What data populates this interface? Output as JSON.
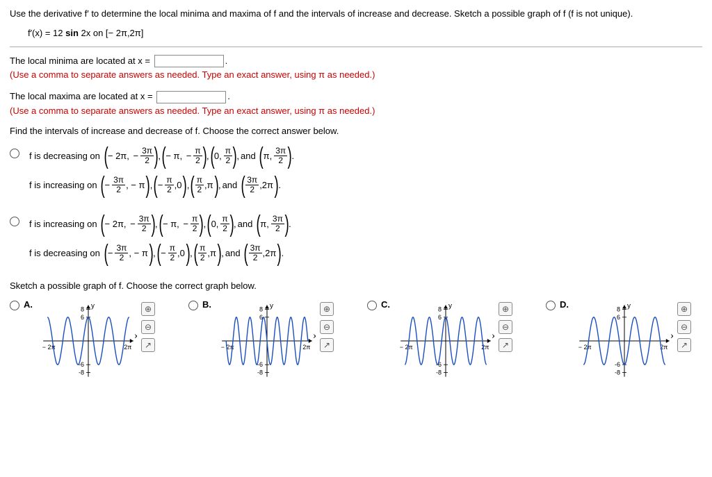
{
  "prompt": "Use the derivative f′ to determine the local minima and maxima of f and the intervals of increase and decrease. Sketch a possible graph of f (f is not unique).",
  "equation_prefix": "f′(x) = 12 ",
  "equation_bold": "sin",
  "equation_suffix": " 2x on [− 2π,2π]",
  "minima_label": "The local minima are located at x =",
  "maxima_label": "The local maxima are located at x =",
  "hint_text": "(Use a comma to separate answers as needed. Type an exact answer, using π as needed.)",
  "intervals_question": "Find the intervals of increase and decrease of f. Choose the correct answer below.",
  "sketch_question": "Sketch a possible graph of f. Choose the correct graph below.",
  "mc": {
    "a": {
      "dec_lead": "f is decreasing on",
      "inc_lead": "f is increasing on"
    },
    "b": {
      "inc_lead": "f is increasing on",
      "dec_lead": "f is decreasing on"
    }
  },
  "graph_labels": {
    "a": "A.",
    "b": "B.",
    "c": "C.",
    "d": "D."
  },
  "graph_style": {
    "width": 140,
    "height": 120,
    "xlabel": "x",
    "ylabel": "y",
    "y_ticks": [
      -8,
      -6,
      6,
      8
    ],
    "x_ticks_neg": "− 2π",
    "x_ticks_pos": "2π",
    "axis_color": "#000000",
    "curve_color": "#1a4fc0",
    "amplitude": 6,
    "graphs": {
      "A": {
        "type": "cos",
        "periods": 4,
        "phase": 0.0
      },
      "B": {
        "type": "cos",
        "periods": 6,
        "phase": 0.5
      },
      "C": {
        "type": "cos",
        "periods": 5,
        "phase": 0.0
      },
      "D": {
        "type": "neg_cos",
        "periods": 4,
        "phase": 0.0
      }
    }
  },
  "icons": {
    "zoom_in": "⊕",
    "zoom_out": "⊖",
    "popout": "↗"
  }
}
